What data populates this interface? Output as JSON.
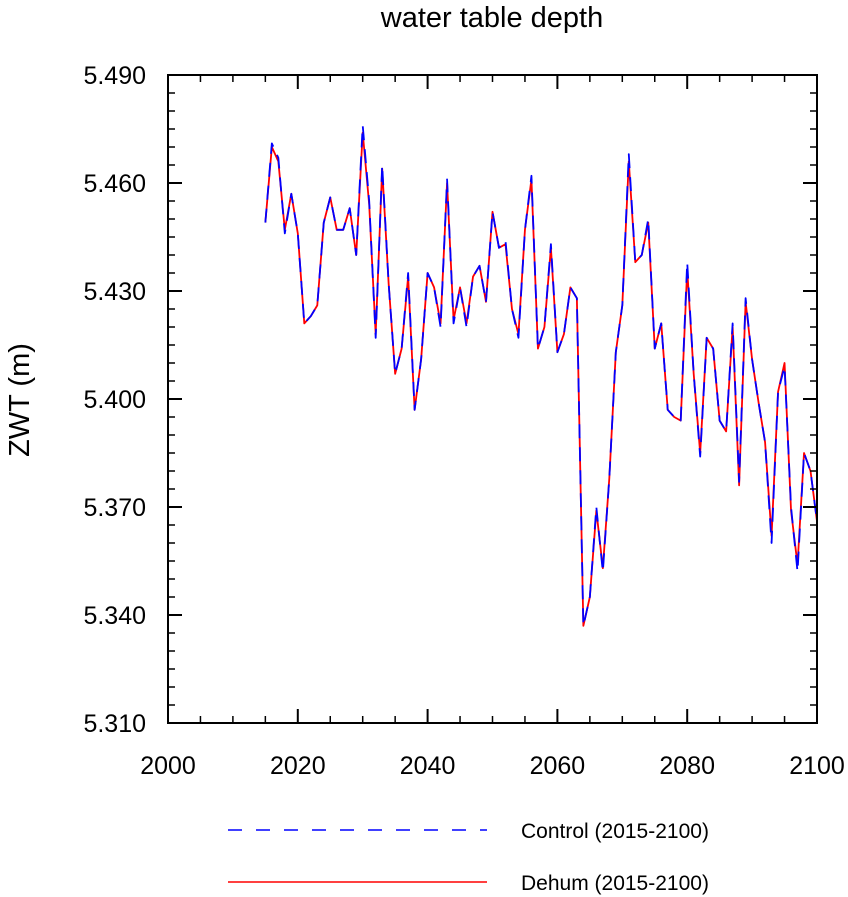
{
  "chart_data": {
    "type": "line",
    "title": "water table depth",
    "xlabel": "",
    "ylabel": "ZWT  (m)",
    "xlim": [
      2000,
      2100
    ],
    "ylim": [
      5.31,
      5.49
    ],
    "x_ticks": [
      2000,
      2020,
      2040,
      2060,
      2080,
      2100
    ],
    "x_tick_labels": [
      "2000",
      "2020",
      "2040",
      "2060",
      "2080",
      "2100"
    ],
    "y_ticks": [
      5.31,
      5.34,
      5.37,
      5.4,
      5.43,
      5.46,
      5.49
    ],
    "y_tick_labels": [
      "5.310",
      "5.340",
      "5.370",
      "5.400",
      "5.430",
      "5.460",
      "5.490"
    ],
    "x_minor_step": 5,
    "y_minor_step": 0.005,
    "grid": false,
    "legend_position": "bottom",
    "x": [
      2015,
      2016,
      2017,
      2018,
      2019,
      2020,
      2021,
      2022,
      2023,
      2024,
      2025,
      2026,
      2027,
      2028,
      2029,
      2030,
      2031,
      2032,
      2033,
      2034,
      2035,
      2036,
      2037,
      2038,
      2039,
      2040,
      2041,
      2042,
      2043,
      2044,
      2045,
      2046,
      2047,
      2048,
      2049,
      2050,
      2051,
      2052,
      2053,
      2054,
      2055,
      2056,
      2057,
      2058,
      2059,
      2060,
      2061,
      2062,
      2063,
      2064,
      2065,
      2066,
      2067,
      2068,
      2069,
      2070,
      2071,
      2072,
      2073,
      2074,
      2075,
      2076,
      2077,
      2078,
      2079,
      2080,
      2081,
      2082,
      2083,
      2084,
      2085,
      2086,
      2087,
      2088,
      2089,
      2090,
      2091,
      2092,
      2093,
      2094,
      2095,
      2096,
      2097,
      2098,
      2099,
      2100
    ],
    "series": [
      {
        "name": "Control (2015-2100)",
        "color": "#0000ff",
        "dash": "dashed",
        "values": [
          5.449,
          5.471,
          5.467,
          5.446,
          5.457,
          5.446,
          5.421,
          5.423,
          5.426,
          5.449,
          5.456,
          5.447,
          5.447,
          5.453,
          5.44,
          5.476,
          5.455,
          5.417,
          5.465,
          5.432,
          5.407,
          5.414,
          5.435,
          5.397,
          5.411,
          5.435,
          5.431,
          5.42,
          5.461,
          5.421,
          5.431,
          5.42,
          5.434,
          5.437,
          5.427,
          5.452,
          5.442,
          5.444,
          5.425,
          5.417,
          5.447,
          5.462,
          5.414,
          5.42,
          5.443,
          5.413,
          5.418,
          5.431,
          5.428,
          5.337,
          5.345,
          5.37,
          5.352,
          5.378,
          5.413,
          5.426,
          5.468,
          5.438,
          5.44,
          5.45,
          5.414,
          5.421,
          5.397,
          5.395,
          5.394,
          5.438,
          5.407,
          5.384,
          5.417,
          5.414,
          5.394,
          5.391,
          5.421,
          5.377,
          5.428,
          5.411,
          5.399,
          5.388,
          5.36,
          5.402,
          5.409,
          5.37,
          5.352,
          5.385,
          5.38,
          5.366
        ]
      },
      {
        "name": "Dehum (2015-2100)",
        "color": "#ff0000",
        "dash": "solid",
        "values": [
          5.449,
          5.47,
          5.466,
          5.447,
          5.457,
          5.446,
          5.421,
          5.423,
          5.426,
          5.449,
          5.456,
          5.447,
          5.447,
          5.453,
          5.44,
          5.474,
          5.454,
          5.418,
          5.464,
          5.432,
          5.407,
          5.414,
          5.434,
          5.397,
          5.411,
          5.435,
          5.431,
          5.421,
          5.46,
          5.422,
          5.431,
          5.421,
          5.434,
          5.437,
          5.427,
          5.452,
          5.442,
          5.443,
          5.425,
          5.418,
          5.447,
          5.461,
          5.414,
          5.42,
          5.442,
          5.413,
          5.418,
          5.431,
          5.428,
          5.337,
          5.345,
          5.369,
          5.353,
          5.378,
          5.413,
          5.426,
          5.466,
          5.438,
          5.44,
          5.449,
          5.414,
          5.421,
          5.397,
          5.395,
          5.394,
          5.436,
          5.407,
          5.385,
          5.417,
          5.414,
          5.394,
          5.391,
          5.42,
          5.376,
          5.427,
          5.411,
          5.399,
          5.388,
          5.362,
          5.402,
          5.41,
          5.369,
          5.354,
          5.385,
          5.38,
          5.366
        ]
      }
    ]
  }
}
